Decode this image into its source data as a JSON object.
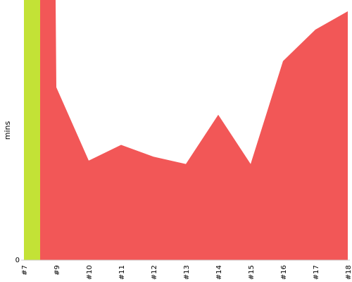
{
  "chart_data": {
    "type": "area",
    "title": "",
    "xlabel": "",
    "ylabel": "mins",
    "categories": [
      "#7",
      "#9",
      "#10",
      "#11",
      "#12",
      "#13",
      "#14",
      "#15",
      "#16",
      "#17",
      "#18"
    ],
    "y_ticks": [
      "0"
    ],
    "ylim": [
      0,
      100
    ],
    "grid": false,
    "legend": "none",
    "series": [
      {
        "color": "#f25757",
        "values": [
          110,
          66,
          38,
          44,
          39.5,
          36.7,
          55.5,
          36.7,
          76,
          88,
          95
        ]
      }
    ],
    "marker": {
      "category": "#7",
      "color": "#c3e236"
    }
  }
}
